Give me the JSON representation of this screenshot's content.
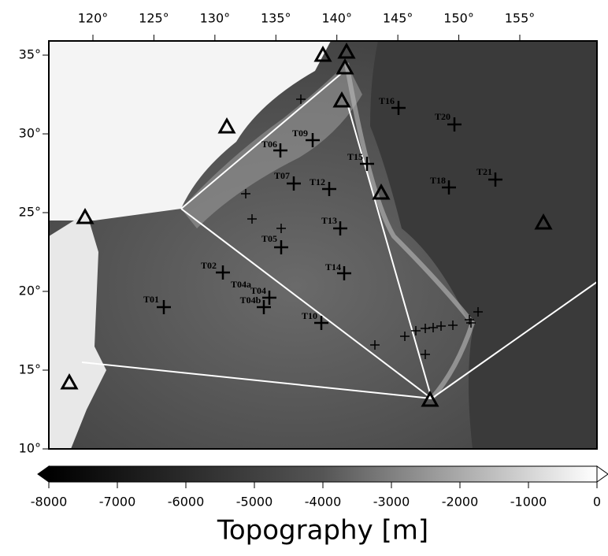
{
  "map": {
    "lon_ticks": [
      {
        "value": 120,
        "label": "120°"
      },
      {
        "value": 125,
        "label": "125°"
      },
      {
        "value": 130,
        "label": "130°"
      },
      {
        "value": 135,
        "label": "135°"
      },
      {
        "value": 140,
        "label": "140°"
      },
      {
        "value": 145,
        "label": "145°"
      },
      {
        "value": 150,
        "label": "150°"
      },
      {
        "value": 155,
        "label": "155°"
      }
    ],
    "lat_ticks": [
      {
        "value": 10,
        "label": "10°"
      },
      {
        "value": 15,
        "label": "15°"
      },
      {
        "value": 20,
        "label": "20°"
      },
      {
        "value": 25,
        "label": "25°"
      },
      {
        "value": 30,
        "label": "30°"
      },
      {
        "value": 35,
        "label": "35°"
      }
    ],
    "stations": [
      "T01",
      "T02",
      "T04a",
      "T04",
      "T04b",
      "T05",
      "T06",
      "T07",
      "T09",
      "T10",
      "T12",
      "T13",
      "T14",
      "T15",
      "T16",
      "T18",
      "T20",
      "T21"
    ],
    "colorbar": {
      "lim": [
        -8000,
        0
      ],
      "ticks": [
        -8000,
        -7000,
        -6000,
        -5000,
        -4000,
        -3000,
        -2000,
        -1000,
        0
      ],
      "label": "Topography [m]"
    }
  }
}
